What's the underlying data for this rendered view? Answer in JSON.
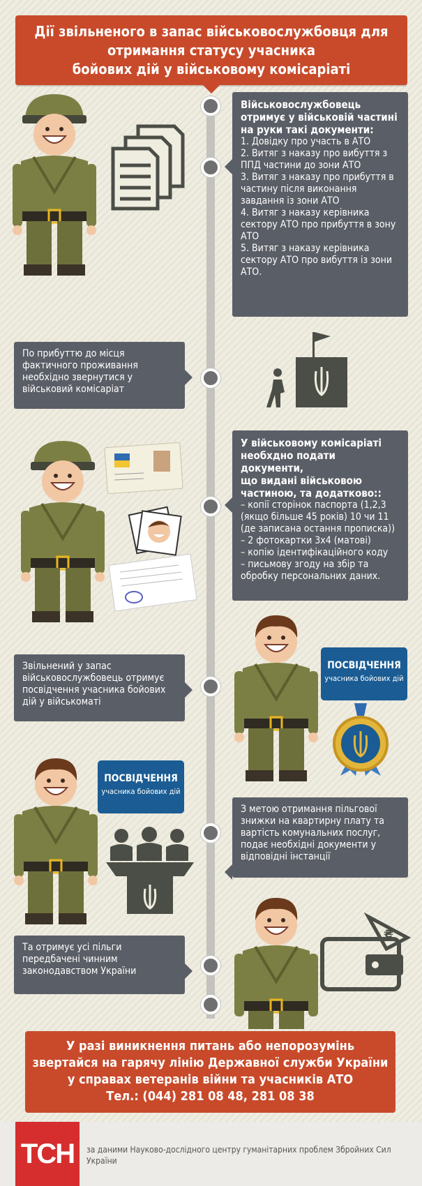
{
  "header": {
    "title_lines": [
      "Дії звільненого в запас військовослужбовця для",
      "отримання статусу учасника",
      "бойових дій у військовому комісаріаті"
    ]
  },
  "step1": {
    "heading": [
      "Військовослужбовець",
      "отримує у військовій частині",
      "на руки такі документи:"
    ],
    "items": [
      "1. Довідку про участь в АТО",
      "2. Витяг з наказу про вибуття з ППД частини до зони АТО",
      "3. Витяг з наказу про прибуття в частину після виконання завдання із зони АТО",
      "4. Витяг з наказу керівника сектору АТО про прибуття в зону АТО",
      "5. Витяг з наказу керівника сектору АТО про вибуття із зони АТО."
    ]
  },
  "step2": {
    "text": "По прибуттю до місця фактичного проживання необхідно звернутися у військовий комісаріат"
  },
  "step3": {
    "heading": [
      "У військовому комісаріаті",
      "необхдно подати документи,",
      "що видані військовою",
      "частиною, та додатково::"
    ],
    "items": [
      "– копії сторінок паспорта (1,2,3 (якщо більше 45 років) 10 чи 11 (де записана остання прописка))",
      "– 2 фотокартки 3х4 (матові)",
      "– копію ідентифікаційного коду",
      "– письмову згоду на збір та обробку персональних даних."
    ]
  },
  "step4": {
    "text": "Звільнений у запас військовослужбовець отримує посвідчення учасника бойових дій у військоматі"
  },
  "certificate": {
    "title": "ПОСВІДЧЕННЯ",
    "subtitle": "учасника бойових дій"
  },
  "step5": {
    "text": "З метою отримання пільгової знижки на квартирну плату та вартість комунальних послуг, подає необхідні документи у відповідні інстанції"
  },
  "step6": {
    "text": "Та отримує усі пільги передбачені чинним законодавством України"
  },
  "hotline": {
    "lines": [
      "У разі виникнення питань або непорозумінь",
      "звертайся на гарячу лінію Державної служби України",
      "у справах ветеранів війни та учасників АТО",
      "Тел.: (044) 281 08 48, 281 08 38"
    ]
  },
  "footer": {
    "logo": "ТСН",
    "source": "за даними Науково-дослідного центру гуманітарних проблем Збройних Сил України"
  },
  "colors": {
    "accent_red": "#c84a2a",
    "box_gray": "#5a5e66",
    "soldier_olive": "#7a7d3e",
    "certificate_blue": "#1a5c93"
  }
}
